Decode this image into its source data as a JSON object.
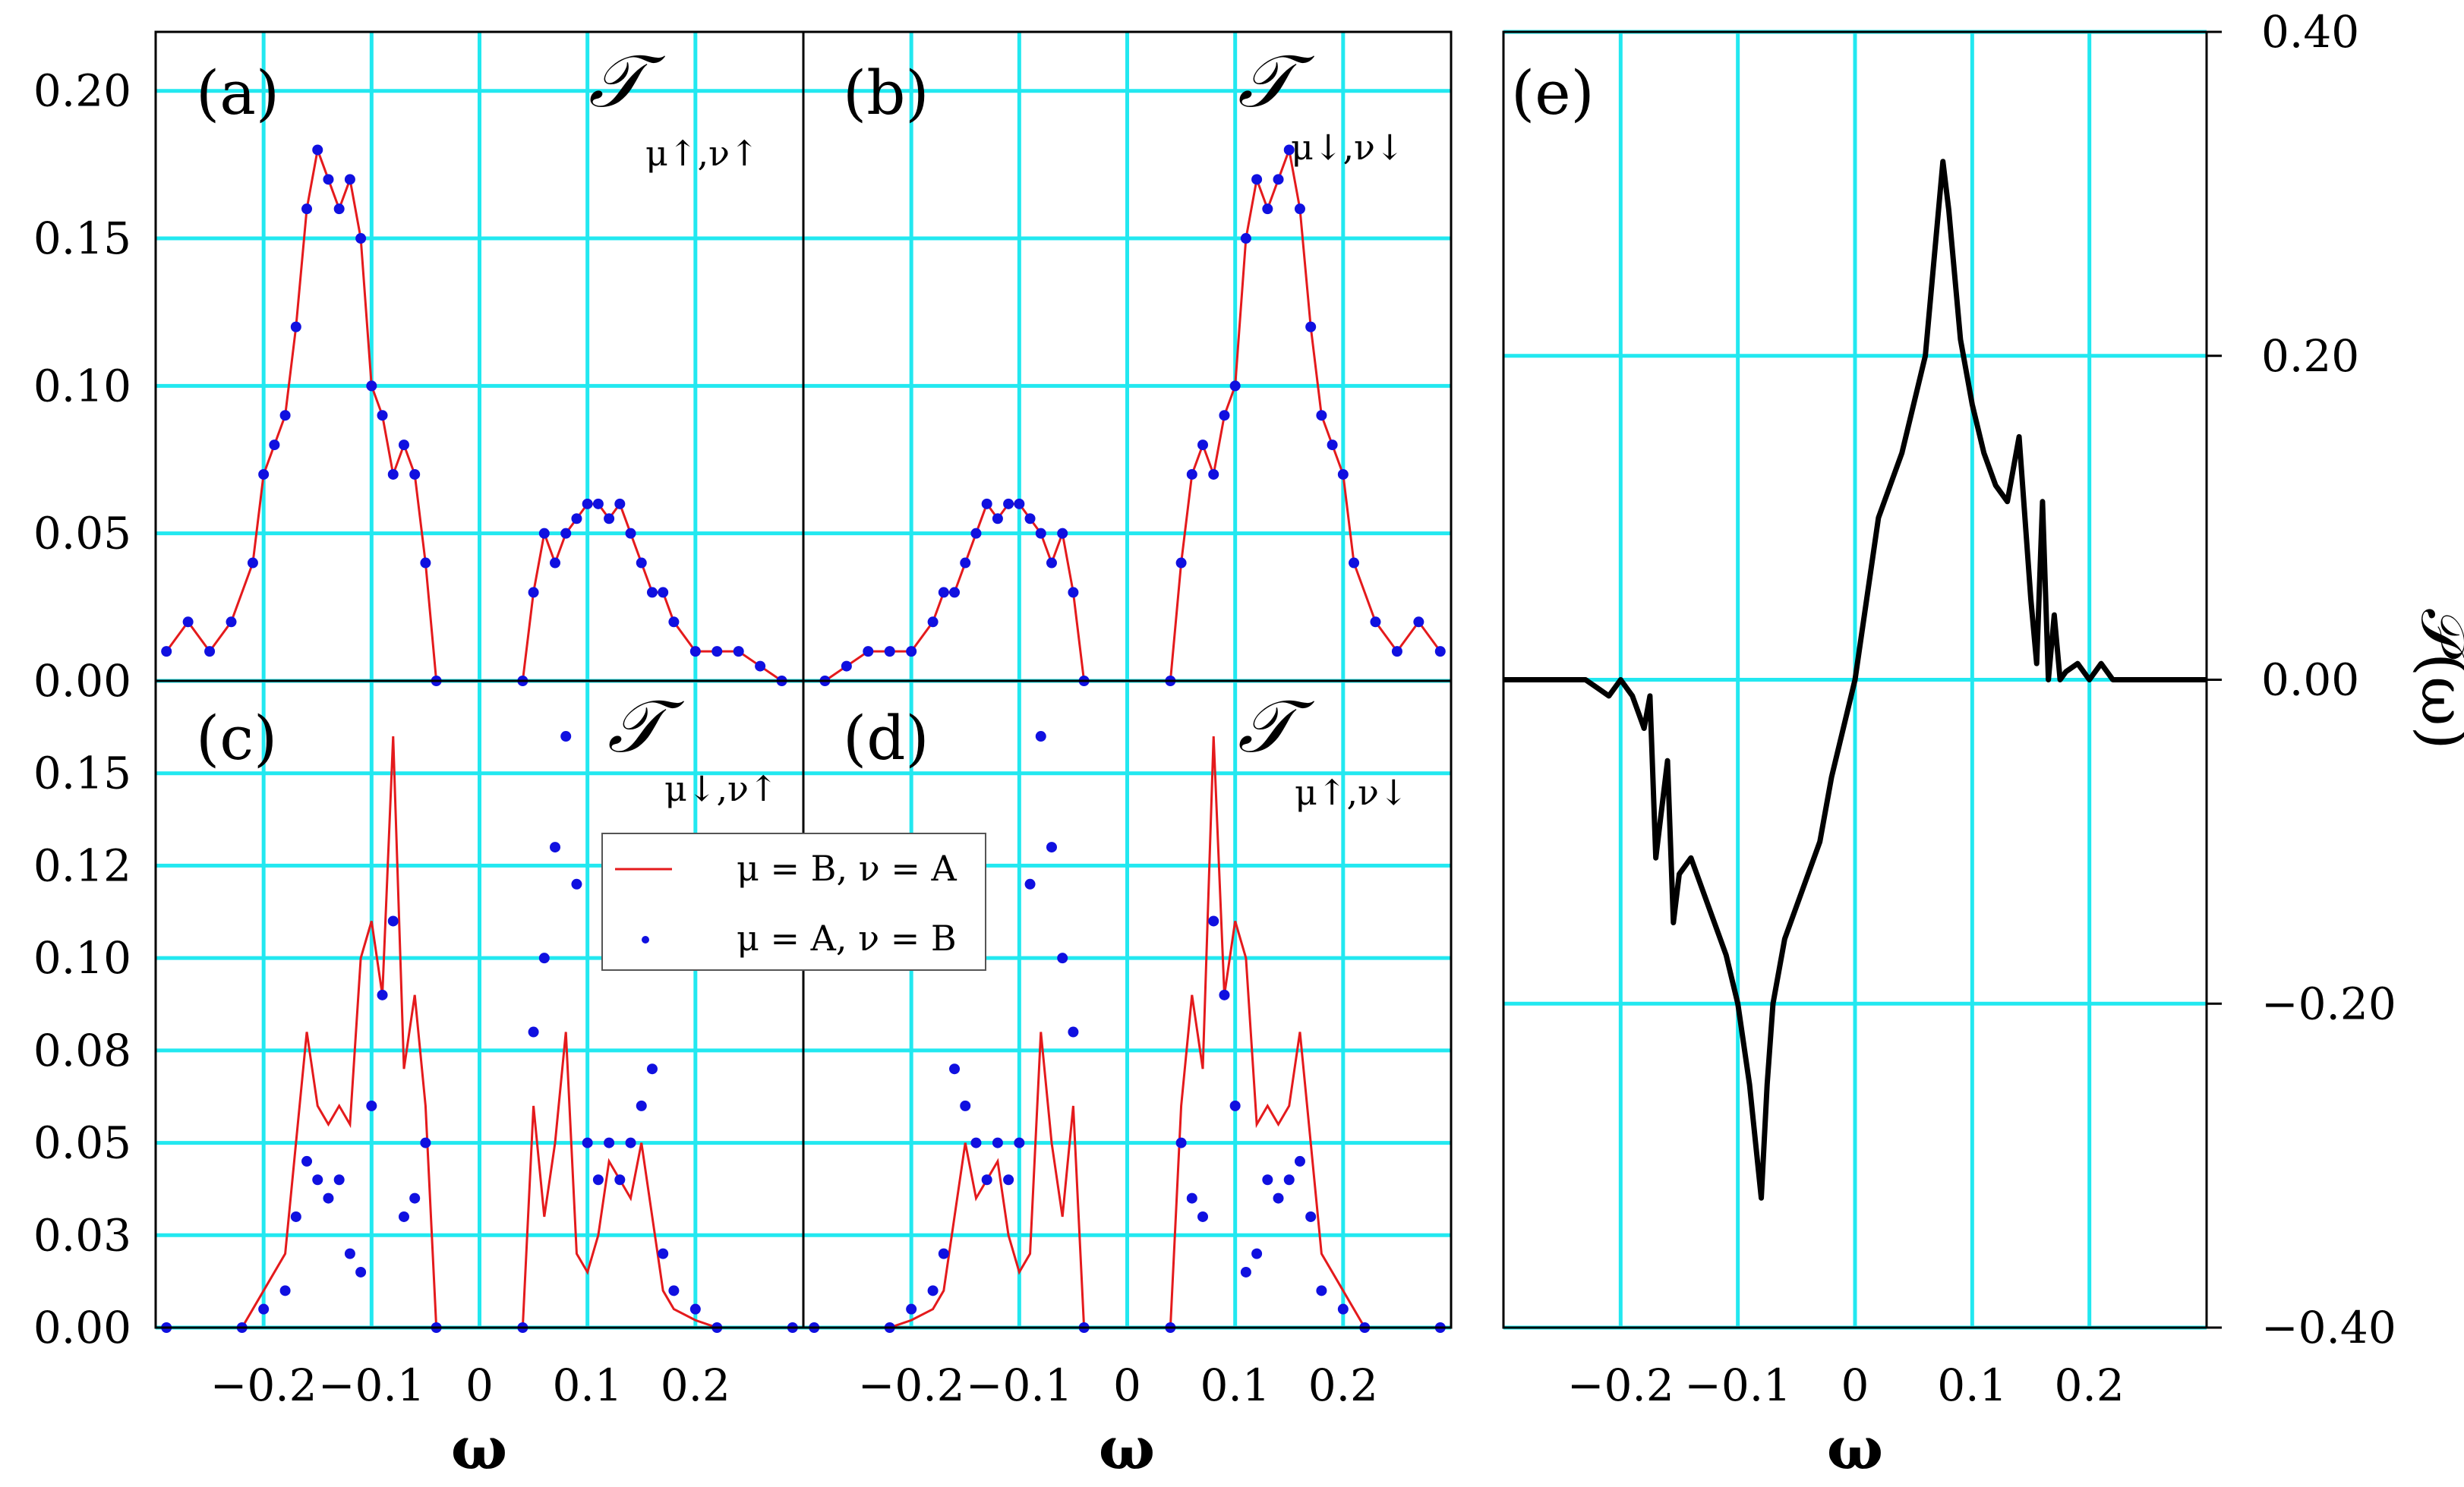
{
  "chart_data": [
    {
      "panel": "(a)",
      "type": "line",
      "symbol": "𝒯",
      "subscript": "μ↑,ν↑",
      "xlabel": "ω",
      "xlim": [
        -0.3,
        0.3
      ],
      "ylim": [
        0,
        0.22
      ],
      "xticks": [
        "−0.2",
        "−0.1",
        "0",
        "0.1",
        "0.2"
      ],
      "yticks": [
        "0.00",
        "0.05",
        "0.10",
        "0.15",
        "0.20"
      ],
      "series": [
        {
          "name": "μ = B, ν = A",
          "style": "red-line",
          "x": [
            -0.29,
            -0.27,
            -0.25,
            -0.23,
            -0.21,
            -0.2,
            -0.19,
            -0.18,
            -0.17,
            -0.16,
            -0.15,
            -0.14,
            -0.13,
            -0.12,
            -0.11,
            -0.1,
            -0.09,
            -0.08,
            -0.07,
            -0.06,
            -0.05,
            -0.04,
            0.04,
            0.05,
            0.06,
            0.07,
            0.08,
            0.09,
            0.1,
            0.11,
            0.12,
            0.13,
            0.14,
            0.15,
            0.16,
            0.17,
            0.18,
            0.2,
            0.22,
            0.24,
            0.26,
            0.28
          ],
          "y": [
            0.01,
            0.02,
            0.01,
            0.02,
            0.04,
            0.07,
            0.08,
            0.09,
            0.12,
            0.16,
            0.18,
            0.17,
            0.16,
            0.17,
            0.15,
            0.1,
            0.09,
            0.07,
            0.08,
            0.07,
            0.04,
            0.0,
            0.0,
            0.03,
            0.05,
            0.04,
            0.05,
            0.055,
            0.06,
            0.06,
            0.055,
            0.06,
            0.05,
            0.04,
            0.03,
            0.03,
            0.02,
            0.01,
            0.01,
            0.01,
            0.005,
            0.0
          ]
        },
        {
          "name": "μ = A, ν = B",
          "style": "blue-dots",
          "x": [
            -0.29,
            -0.27,
            -0.25,
            -0.23,
            -0.21,
            -0.2,
            -0.19,
            -0.18,
            -0.17,
            -0.16,
            -0.15,
            -0.14,
            -0.13,
            -0.12,
            -0.11,
            -0.1,
            -0.09,
            -0.08,
            -0.07,
            -0.06,
            -0.05,
            -0.04,
            0.04,
            0.05,
            0.06,
            0.07,
            0.08,
            0.09,
            0.1,
            0.11,
            0.12,
            0.13,
            0.14,
            0.15,
            0.16,
            0.17,
            0.18,
            0.2,
            0.22,
            0.24,
            0.26,
            0.28
          ],
          "y": [
            0.01,
            0.02,
            0.01,
            0.02,
            0.04,
            0.07,
            0.08,
            0.09,
            0.12,
            0.16,
            0.18,
            0.17,
            0.16,
            0.17,
            0.15,
            0.1,
            0.09,
            0.07,
            0.08,
            0.07,
            0.04,
            0.0,
            0.0,
            0.03,
            0.05,
            0.04,
            0.05,
            0.055,
            0.06,
            0.06,
            0.055,
            0.06,
            0.05,
            0.04,
            0.03,
            0.03,
            0.02,
            0.01,
            0.01,
            0.01,
            0.005,
            0.0
          ]
        }
      ]
    },
    {
      "panel": "(b)",
      "type": "line",
      "symbol": "𝒯",
      "subscript": "μ↓,ν↓",
      "xlabel": "ω",
      "xlim": [
        -0.3,
        0.3
      ],
      "ylim": [
        0,
        0.22
      ],
      "xticks": [
        "−0.2",
        "−0.1",
        "0",
        "0.1",
        "0.2"
      ],
      "series": [
        {
          "name": "μ = B, ν = A",
          "style": "red-line",
          "x": [
            -0.28,
            -0.26,
            -0.24,
            -0.22,
            -0.2,
            -0.18,
            -0.17,
            -0.16,
            -0.15,
            -0.14,
            -0.13,
            -0.12,
            -0.11,
            -0.1,
            -0.09,
            -0.08,
            -0.07,
            -0.06,
            -0.05,
            -0.04,
            0.04,
            0.05,
            0.06,
            0.07,
            0.08,
            0.09,
            0.1,
            0.11,
            0.12,
            0.13,
            0.14,
            0.15,
            0.16,
            0.17,
            0.18,
            0.19,
            0.2,
            0.21,
            0.23,
            0.25,
            0.27,
            0.29
          ],
          "y": [
            0.0,
            0.005,
            0.01,
            0.01,
            0.01,
            0.02,
            0.03,
            0.03,
            0.04,
            0.05,
            0.06,
            0.055,
            0.06,
            0.06,
            0.055,
            0.05,
            0.04,
            0.05,
            0.03,
            0.0,
            0.0,
            0.04,
            0.07,
            0.08,
            0.07,
            0.09,
            0.1,
            0.15,
            0.17,
            0.16,
            0.17,
            0.18,
            0.16,
            0.12,
            0.09,
            0.08,
            0.07,
            0.04,
            0.02,
            0.01,
            0.02,
            0.01
          ]
        },
        {
          "name": "μ = A, ν = B",
          "style": "blue-dots",
          "x": [
            -0.28,
            -0.26,
            -0.24,
            -0.22,
            -0.2,
            -0.18,
            -0.17,
            -0.16,
            -0.15,
            -0.14,
            -0.13,
            -0.12,
            -0.11,
            -0.1,
            -0.09,
            -0.08,
            -0.07,
            -0.06,
            -0.05,
            -0.04,
            0.04,
            0.05,
            0.06,
            0.07,
            0.08,
            0.09,
            0.1,
            0.11,
            0.12,
            0.13,
            0.14,
            0.15,
            0.16,
            0.17,
            0.18,
            0.19,
            0.2,
            0.21,
            0.23,
            0.25,
            0.27,
            0.29
          ],
          "y": [
            0.0,
            0.005,
            0.01,
            0.01,
            0.01,
            0.02,
            0.03,
            0.03,
            0.04,
            0.05,
            0.06,
            0.055,
            0.06,
            0.06,
            0.055,
            0.05,
            0.04,
            0.05,
            0.03,
            0.0,
            0.0,
            0.04,
            0.07,
            0.08,
            0.07,
            0.09,
            0.1,
            0.15,
            0.17,
            0.16,
            0.17,
            0.18,
            0.16,
            0.12,
            0.09,
            0.08,
            0.07,
            0.04,
            0.02,
            0.01,
            0.02,
            0.01
          ]
        }
      ]
    },
    {
      "panel": "(c)",
      "type": "line",
      "symbol": "𝒯",
      "subscript": "μ↓,ν↑",
      "xlabel": "ω",
      "xlim": [
        -0.3,
        0.3
      ],
      "ylim": [
        0,
        0.175
      ],
      "xticks": [
        "−0.2",
        "−0.1",
        "0",
        "0.1",
        "0.2"
      ],
      "yticks": [
        "0.00",
        "0.03",
        "0.05",
        "0.08",
        "0.10",
        "0.12",
        "0.15"
      ],
      "legend": [
        "μ = B, ν = A",
        "μ = A, ν = B"
      ],
      "series": [
        {
          "name": "μ = B, ν = A",
          "style": "red-line",
          "x": [
            -0.29,
            -0.22,
            -0.2,
            -0.18,
            -0.17,
            -0.16,
            -0.15,
            -0.14,
            -0.13,
            -0.12,
            -0.11,
            -0.1,
            -0.09,
            -0.08,
            -0.07,
            -0.06,
            -0.05,
            -0.04,
            0.04,
            0.05,
            0.06,
            0.07,
            0.08,
            0.09,
            0.1,
            0.11,
            0.12,
            0.13,
            0.14,
            0.15,
            0.16,
            0.17,
            0.18,
            0.2,
            0.22,
            0.29
          ],
          "y": [
            0.0,
            0.0,
            0.01,
            0.02,
            0.05,
            0.08,
            0.06,
            0.055,
            0.06,
            0.055,
            0.1,
            0.11,
            0.09,
            0.16,
            0.07,
            0.09,
            0.06,
            0.0,
            0.0,
            0.06,
            0.03,
            0.05,
            0.08,
            0.02,
            0.015,
            0.025,
            0.045,
            0.04,
            0.035,
            0.05,
            0.03,
            0.01,
            0.005,
            0.002,
            0.0,
            0.0
          ]
        },
        {
          "name": "μ = A, ν = B",
          "style": "blue-dots",
          "x": [
            -0.29,
            -0.22,
            -0.2,
            -0.18,
            -0.17,
            -0.16,
            -0.15,
            -0.14,
            -0.13,
            -0.12,
            -0.11,
            -0.1,
            -0.09,
            -0.08,
            -0.07,
            -0.06,
            -0.05,
            -0.04,
            0.04,
            0.05,
            0.06,
            0.07,
            0.08,
            0.09,
            0.1,
            0.11,
            0.12,
            0.13,
            0.14,
            0.15,
            0.16,
            0.17,
            0.18,
            0.2,
            0.22,
            0.29
          ],
          "y": [
            0.0,
            0.0,
            0.005,
            0.01,
            0.03,
            0.045,
            0.04,
            0.035,
            0.04,
            0.02,
            0.015,
            0.06,
            0.09,
            0.11,
            0.03,
            0.035,
            0.05,
            0.0,
            0.0,
            0.08,
            0.1,
            0.13,
            0.16,
            0.12,
            0.05,
            0.04,
            0.05,
            0.04,
            0.05,
            0.06,
            0.07,
            0.02,
            0.01,
            0.005,
            0.0,
            0.0
          ]
        }
      ]
    },
    {
      "panel": "(d)",
      "type": "line",
      "symbol": "𝒯",
      "subscript": "μ↑,ν↓",
      "xlabel": "ω",
      "xlim": [
        -0.3,
        0.3
      ],
      "ylim": [
        0,
        0.175
      ],
      "xticks": [
        "−0.2",
        "−0.1",
        "0",
        "0.1",
        "0.2"
      ],
      "series": [
        {
          "name": "μ = B, ν = A",
          "style": "red-line",
          "x": [
            -0.29,
            -0.22,
            -0.2,
            -0.18,
            -0.17,
            -0.16,
            -0.15,
            -0.14,
            -0.13,
            -0.12,
            -0.11,
            -0.1,
            -0.09,
            -0.08,
            -0.07,
            -0.06,
            -0.05,
            -0.04,
            0.04,
            0.05,
            0.06,
            0.07,
            0.08,
            0.09,
            0.1,
            0.11,
            0.12,
            0.13,
            0.14,
            0.15,
            0.16,
            0.17,
            0.18,
            0.2,
            0.22,
            0.29
          ],
          "y": [
            0.0,
            0.0,
            0.002,
            0.005,
            0.01,
            0.03,
            0.05,
            0.035,
            0.04,
            0.045,
            0.025,
            0.015,
            0.02,
            0.08,
            0.05,
            0.03,
            0.06,
            0.0,
            0.0,
            0.06,
            0.09,
            0.07,
            0.16,
            0.09,
            0.11,
            0.1,
            0.055,
            0.06,
            0.055,
            0.06,
            0.08,
            0.05,
            0.02,
            0.01,
            0.0,
            0.0
          ]
        },
        {
          "name": "μ = A, ν = B",
          "style": "blue-dots",
          "x": [
            -0.29,
            -0.22,
            -0.2,
            -0.18,
            -0.17,
            -0.16,
            -0.15,
            -0.14,
            -0.13,
            -0.12,
            -0.11,
            -0.1,
            -0.09,
            -0.08,
            -0.07,
            -0.06,
            -0.05,
            -0.04,
            0.04,
            0.05,
            0.06,
            0.07,
            0.08,
            0.09,
            0.1,
            0.11,
            0.12,
            0.13,
            0.14,
            0.15,
            0.16,
            0.17,
            0.18,
            0.2,
            0.22,
            0.29
          ],
          "y": [
            0.0,
            0.0,
            0.005,
            0.01,
            0.02,
            0.07,
            0.06,
            0.05,
            0.04,
            0.05,
            0.04,
            0.05,
            0.12,
            0.16,
            0.13,
            0.1,
            0.08,
            0.0,
            0.0,
            0.05,
            0.035,
            0.03,
            0.11,
            0.09,
            0.06,
            0.015,
            0.02,
            0.04,
            0.035,
            0.04,
            0.045,
            0.03,
            0.01,
            0.005,
            0.0,
            0.0
          ]
        }
      ]
    },
    {
      "panel": "(e)",
      "type": "line",
      "xlabel": "ω",
      "ylabel": "𝒫(ω)",
      "xlim": [
        -0.3,
        0.3
      ],
      "ylim": [
        -0.4,
        0.4
      ],
      "xticks": [
        "−0.2",
        "−0.1",
        "0",
        "0.1",
        "0.2"
      ],
      "yticks": [
        "−0.40",
        "−0.20",
        "0.00",
        "0.20",
        "0.40"
      ],
      "series": [
        {
          "name": "P(ω)",
          "style": "black-line",
          "x": [
            -0.3,
            -0.23,
            -0.22,
            -0.21,
            -0.2,
            -0.19,
            -0.18,
            -0.175,
            -0.17,
            -0.16,
            -0.155,
            -0.15,
            -0.14,
            -0.13,
            -0.12,
            -0.11,
            -0.1,
            -0.09,
            -0.08,
            -0.075,
            -0.07,
            -0.06,
            -0.05,
            -0.04,
            -0.03,
            -0.02,
            -0.01,
            0.0,
            0.01,
            0.02,
            0.03,
            0.04,
            0.05,
            0.06,
            0.07,
            0.075,
            0.08,
            0.09,
            0.1,
            0.11,
            0.12,
            0.13,
            0.14,
            0.15,
            0.155,
            0.16,
            0.165,
            0.17,
            0.175,
            0.18,
            0.19,
            0.2,
            0.21,
            0.22,
            0.3
          ],
          "y": [
            0.0,
            0.0,
            -0.005,
            -0.01,
            0.0,
            -0.01,
            -0.03,
            -0.01,
            -0.11,
            -0.05,
            -0.15,
            -0.12,
            -0.11,
            -0.13,
            -0.15,
            -0.17,
            -0.2,
            -0.25,
            -0.32,
            -0.25,
            -0.2,
            -0.16,
            -0.14,
            -0.12,
            -0.1,
            -0.06,
            -0.03,
            0.0,
            0.05,
            0.1,
            0.12,
            0.14,
            0.17,
            0.2,
            0.28,
            0.32,
            0.29,
            0.21,
            0.17,
            0.14,
            0.12,
            0.11,
            0.15,
            0.05,
            0.01,
            0.11,
            0.0,
            0.04,
            0.0,
            0.005,
            0.01,
            0.0,
            0.01,
            0.0,
            0.0
          ]
        }
      ]
    }
  ]
}
